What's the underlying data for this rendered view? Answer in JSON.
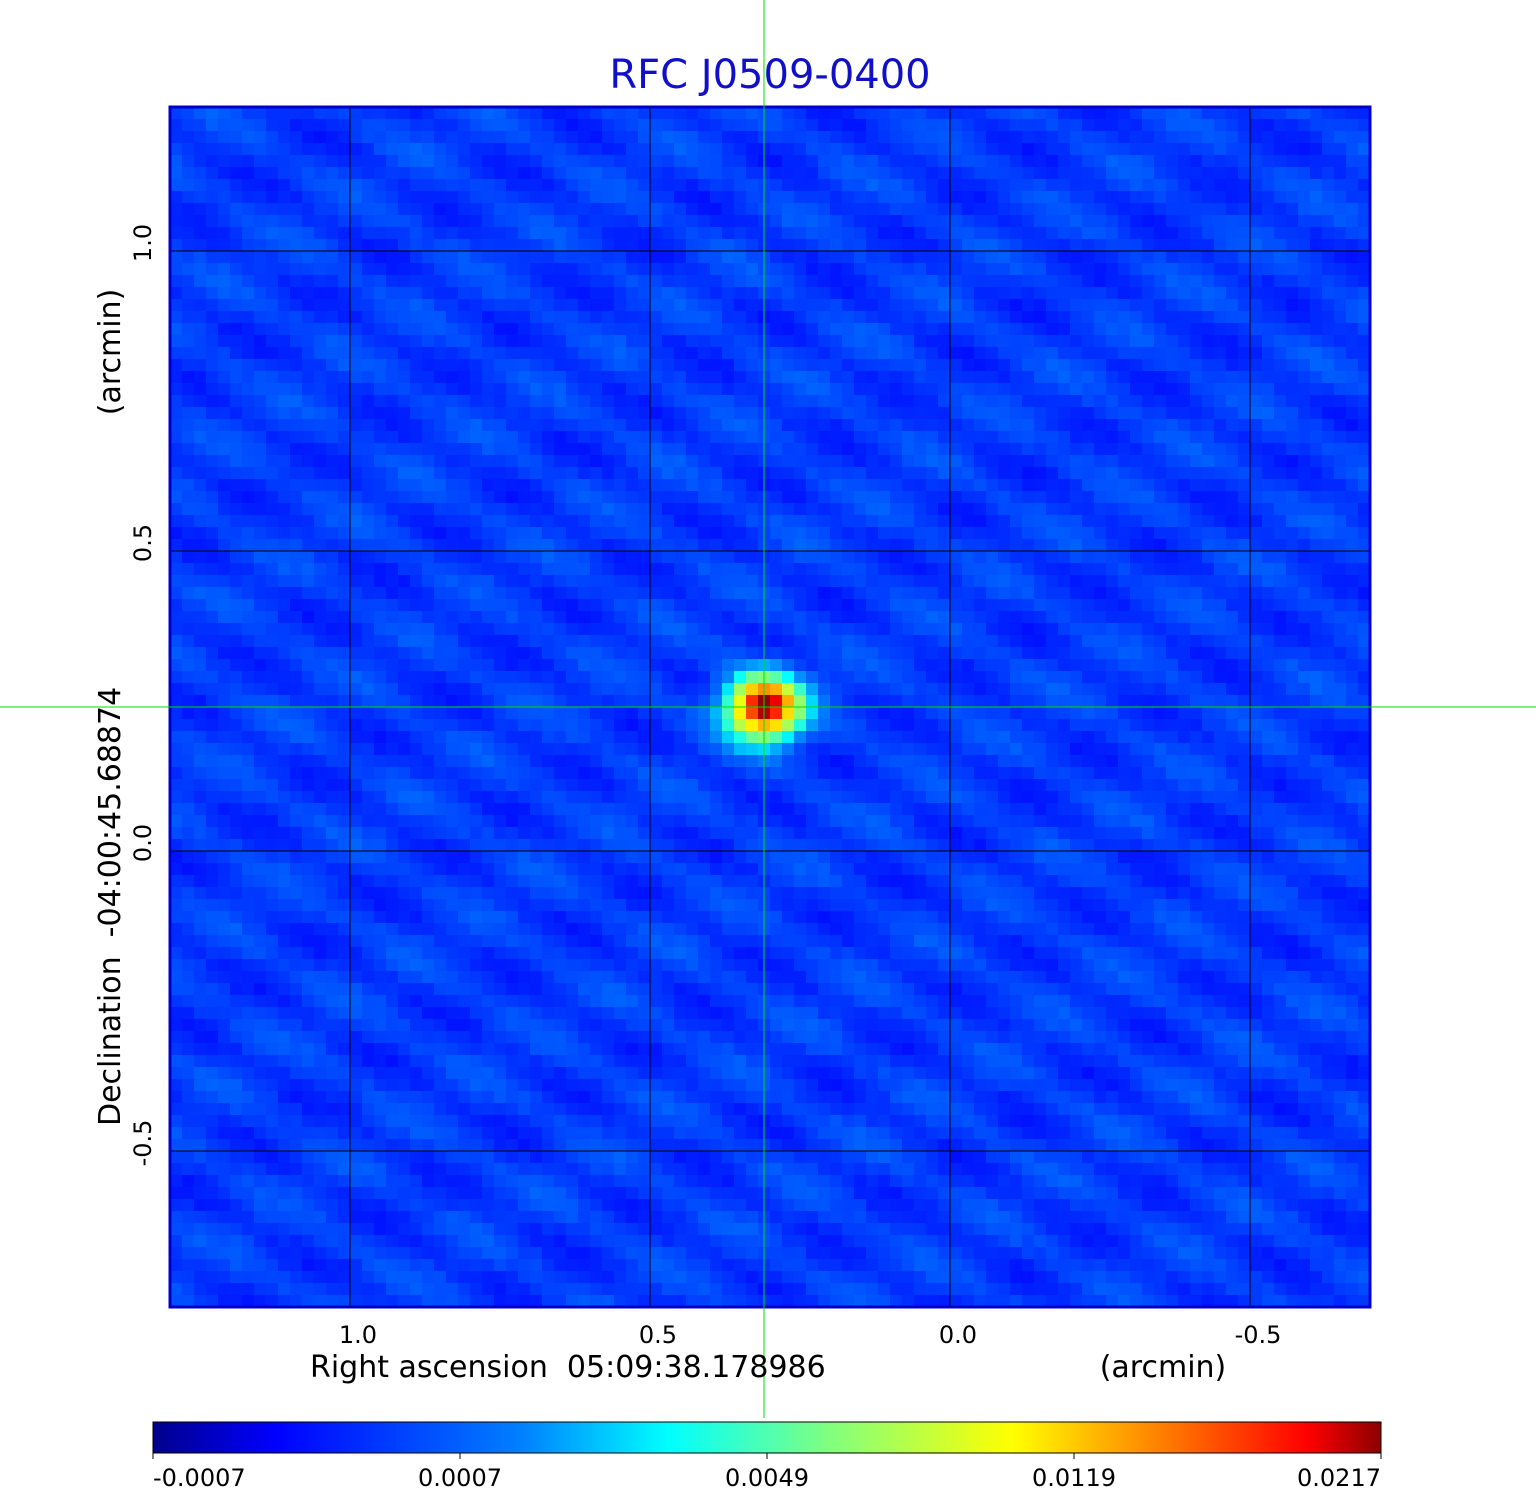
{
  "chart_data": {
    "type": "heatmap",
    "title": "RFC J0509-0400",
    "xlabel": "Right ascension  05:09:38.178986",
    "xunit": "(arcmin)",
    "ylabel": "Declination  -04:00:45.68874",
    "yunit": "(arcmin)",
    "x_ticks": [
      "1.0",
      "0.5",
      "0.0",
      "-0.5"
    ],
    "x_tick_values": [
      1.0,
      0.5,
      0.0,
      -0.5
    ],
    "y_ticks": [
      "1.0",
      "0.5",
      "0.0",
      "-0.5"
    ],
    "y_tick_values": [
      1.0,
      0.5,
      0.0,
      -0.5
    ],
    "xlim": [
      1.3,
      -0.7
    ],
    "ylim": [
      -0.76,
      1.24
    ],
    "grid": true,
    "crosshair": {
      "x": 0.31,
      "y": 0.24
    },
    "peak": {
      "x": 0.31,
      "y": 0.24,
      "value": 0.0217
    },
    "colorbar": {
      "tick_labels": [
        "-0.0007",
        "0.0007",
        "0.0049",
        "0.0119",
        "0.0217"
      ],
      "min": -0.0007,
      "max": 0.0217,
      "colormap": "jet"
    },
    "colors": {
      "title": "#1010c8",
      "grid": "#000000",
      "crosshair": "#00dd00",
      "frame": "#0000cc"
    }
  }
}
